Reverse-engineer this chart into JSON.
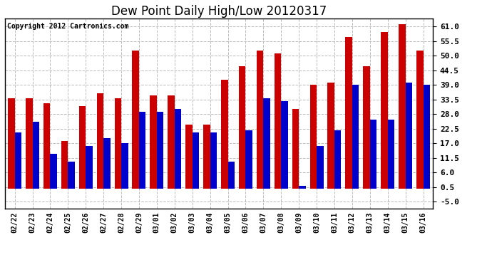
{
  "title": "Dew Point Daily High/Low 20120317",
  "copyright": "Copyright 2012 Cartronics.com",
  "categories": [
    "02/22",
    "02/23",
    "02/24",
    "02/25",
    "02/26",
    "02/27",
    "02/28",
    "02/29",
    "03/01",
    "03/02",
    "03/03",
    "03/04",
    "03/05",
    "03/06",
    "03/07",
    "03/08",
    "03/09",
    "03/10",
    "03/11",
    "03/12",
    "03/13",
    "03/14",
    "03/15",
    "03/16"
  ],
  "high_values": [
    34,
    34,
    32,
    18,
    31,
    36,
    34,
    52,
    35,
    35,
    24,
    24,
    41,
    46,
    52,
    51,
    30,
    39,
    40,
    57,
    46,
    59,
    62,
    52
  ],
  "low_values": [
    21,
    25,
    13,
    10,
    16,
    19,
    17,
    29,
    29,
    30,
    21,
    21,
    10,
    22,
    34,
    33,
    1,
    16,
    22,
    39,
    26,
    26,
    40,
    39
  ],
  "high_color": "#cc0000",
  "low_color": "#0000cc",
  "background_color": "#ffffff",
  "plot_background": "#ffffff",
  "grid_color": "#bbbbbb",
  "title_fontsize": 12,
  "yticks": [
    -5.0,
    0.5,
    6.0,
    11.5,
    17.0,
    22.5,
    28.0,
    33.5,
    39.0,
    44.5,
    50.0,
    55.5,
    61.0
  ],
  "ymin": -7.5,
  "ymax": 64
}
